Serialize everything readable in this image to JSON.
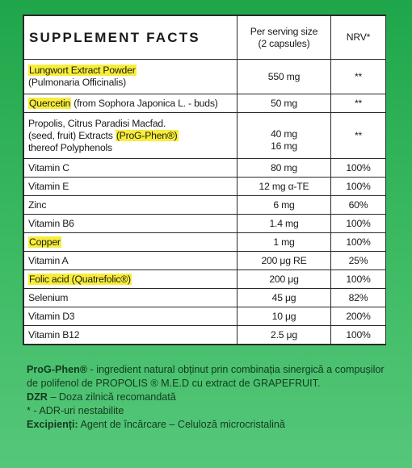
{
  "table": {
    "title": "SUPPLEMENT FACTS",
    "col_amount_header": "Per serving size (2 capsules)",
    "col_amount_header_l1": "Per serving size",
    "col_amount_header_l2": "(2 capsules)",
    "col_nrv_header": "NRV*",
    "rows": [
      {
        "name_hl": "Lungwort Extract Powder",
        "name_rest": "(Pulmonaria Officinalis)",
        "amount": "550 mg",
        "nrv": "**"
      },
      {
        "name_hl": "Quercetin",
        "name_rest": " (from Sophora Japonica L. - buds)",
        "amount": "50 mg",
        "nrv": "**"
      },
      {
        "line1": "Propolis, Citrus Paradisi Macfad.",
        "line2_pre": "(seed, fruit) Extracts ",
        "line2_hl": "(ProG-Phen®)",
        "line3": "thereof Polyphenols",
        "amount1": "40 mg",
        "amount2": "16 mg",
        "nrv": "**"
      },
      {
        "name": "Vitamin C",
        "amount": "80 mg",
        "nrv": "100%"
      },
      {
        "name": "Vitamin E",
        "amount": "12 mg α-TE",
        "nrv": "100%"
      },
      {
        "name": "Zinc",
        "amount": "6 mg",
        "nrv": "60%"
      },
      {
        "name": "Vitamin B6",
        "amount": "1.4 mg",
        "nrv": "100%"
      },
      {
        "name_hl": "Copper",
        "amount": "1 mg",
        "nrv": "100%"
      },
      {
        "name": "Vitamin A",
        "amount": "200 μg RE",
        "nrv": "25%"
      },
      {
        "name_hl": "Folic acid (Quatrefolic®)",
        "amount": "200 μg",
        "nrv": "100%"
      },
      {
        "name": "Selenium",
        "amount": "45 μg",
        "nrv": "82%"
      },
      {
        "name": "Vitamin D3",
        "amount": "10 μg",
        "nrv": "200%"
      },
      {
        "name": "Vitamin B12",
        "amount": "2.5 μg",
        "nrv": "100%"
      }
    ]
  },
  "notes": {
    "progphen_term": "ProG-Phen®",
    "progphen_text": " - ingredient natural obținut prin combinația sinergică a compușilor de polifenol de PROPOLIS ® M.E.D cu extract de GRAPEFRUIT.",
    "dzr_term": "DZR",
    "dzr_text": " – Doza zilnică recomandată",
    "adr_text": "* - ADR-uri nestabilite",
    "excip_term": "Excipienți:",
    "excip_text": " Agent de încărcare – Celuloză microcristalină"
  }
}
